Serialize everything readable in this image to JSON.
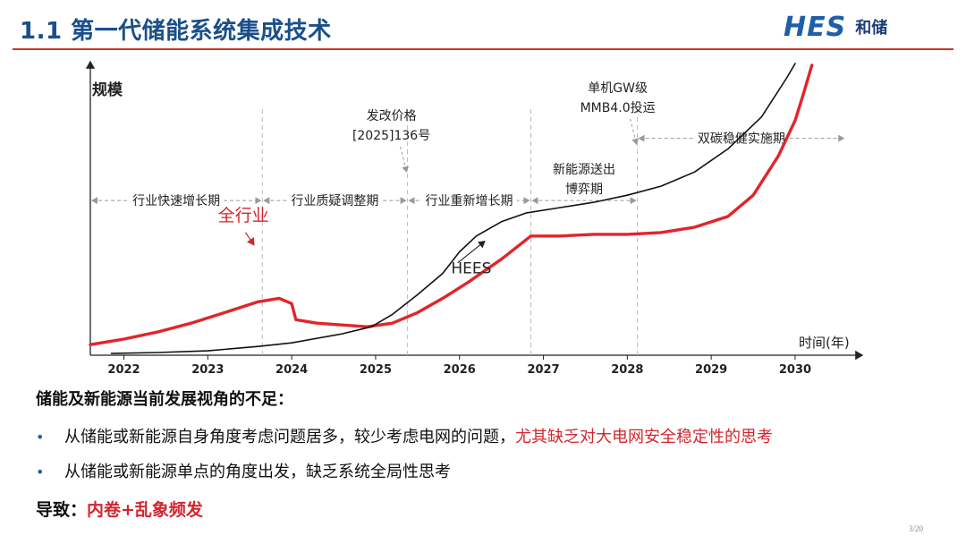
{
  "header": {
    "title": "1.1 第一代储能系统集成技术",
    "logo_mark": "HES",
    "logo_text": "和储"
  },
  "colors": {
    "title": "#1a4f8a",
    "rule": "#c0392b",
    "accent_red": "#d2262f",
    "series_black": "#111111",
    "series_red": "#e1252b"
  },
  "chart_data": {
    "type": "line",
    "ylabel": "规模",
    "xlabel": "时间(年)",
    "x_ticks": [
      "2022",
      "2023",
      "2024",
      "2025",
      "2026",
      "2027",
      "2028",
      "2029",
      "2030"
    ],
    "xlim": [
      2021.6,
      2030.8
    ],
    "ylim": [
      0,
      100
    ],
    "grid": false,
    "series": [
      {
        "name": "全行业",
        "color": "#e1252b",
        "points": [
          [
            2021.6,
            3.6
          ],
          [
            2022.0,
            5.5
          ],
          [
            2022.4,
            7.9
          ],
          [
            2022.8,
            10.9
          ],
          [
            2023.2,
            14.5
          ],
          [
            2023.6,
            18.2
          ],
          [
            2023.85,
            19.4
          ],
          [
            2024.0,
            17.6
          ],
          [
            2024.05,
            12.1
          ],
          [
            2024.3,
            10.9
          ],
          [
            2024.6,
            10.3
          ],
          [
            2024.9,
            9.7
          ],
          [
            2025.2,
            10.9
          ],
          [
            2025.5,
            14.5
          ],
          [
            2025.8,
            19.4
          ],
          [
            2026.1,
            24.8
          ],
          [
            2026.5,
            32.7
          ],
          [
            2026.85,
            40.6
          ],
          [
            2027.2,
            40.6
          ],
          [
            2027.6,
            41.2
          ],
          [
            2028.0,
            41.2
          ],
          [
            2028.4,
            41.8
          ],
          [
            2028.8,
            43.6
          ],
          [
            2029.2,
            47.3
          ],
          [
            2029.5,
            54.5
          ],
          [
            2029.8,
            67.9
          ],
          [
            2030.0,
            80.0
          ],
          [
            2030.1,
            89.1
          ],
          [
            2030.2,
            98.8
          ]
        ],
        "label": "全行业"
      },
      {
        "name": "HEES",
        "color": "#111111",
        "points": [
          [
            2021.85,
            0.6
          ],
          [
            2022.4,
            0.9
          ],
          [
            2023.0,
            1.5
          ],
          [
            2023.6,
            3.0
          ],
          [
            2024.0,
            4.2
          ],
          [
            2024.6,
            7.3
          ],
          [
            2024.95,
            9.7
          ],
          [
            2025.2,
            13.9
          ],
          [
            2025.5,
            20.6
          ],
          [
            2025.8,
            27.9
          ],
          [
            2026.0,
            35.2
          ],
          [
            2026.2,
            40.6
          ],
          [
            2026.5,
            45.5
          ],
          [
            2026.8,
            48.5
          ],
          [
            2027.2,
            50.3
          ],
          [
            2027.6,
            52.1
          ],
          [
            2028.0,
            54.5
          ],
          [
            2028.4,
            57.6
          ],
          [
            2028.8,
            62.4
          ],
          [
            2029.2,
            70.3
          ],
          [
            2029.6,
            81.2
          ],
          [
            2029.9,
            94.5
          ],
          [
            2030.0,
            99.4
          ]
        ],
        "label": "HEES"
      }
    ],
    "boundaries": [
      2023.65,
      2025.38,
      2026.85,
      2028.12
    ],
    "phases": [
      {
        "label": "行业快速增长期",
        "from": 2021.6,
        "to": 2023.65,
        "level": 52.7
      },
      {
        "label": "行业质疑调整期",
        "from": 2023.65,
        "to": 2025.38,
        "level": 52.7
      },
      {
        "label": "行业重新增长期",
        "from": 2025.38,
        "to": 2026.85,
        "level": 52.7
      },
      {
        "label": "新能源送出\n博弈期",
        "from": 2026.85,
        "to": 2028.12,
        "level": 52.7
      },
      {
        "label": "双碳稳健实施期",
        "from": 2028.12,
        "to": 2030.6,
        "level": 73.9
      }
    ],
    "events": [
      {
        "label": "发改价格\n[2025]136号",
        "x": 2025.38
      },
      {
        "label": "单机GW级\nMMB4.0投运",
        "x": 2028.12
      }
    ]
  },
  "body": {
    "section_title": "储能及新能源当前发展视角的不足：",
    "bullets": [
      {
        "plain": "从储能或新能源自身角度考虑问题居多，较少考虑电网的问题，",
        "red": "尤其缺乏对大电网安全稳定性的思考"
      },
      {
        "plain": "从储能或新能源单点的角度出发，缺乏系统全局性思考",
        "red": ""
      }
    ],
    "conclusion_label": "导致：",
    "conclusion_value": "内卷+乱象频发"
  },
  "page": {
    "number": "3/20"
  }
}
